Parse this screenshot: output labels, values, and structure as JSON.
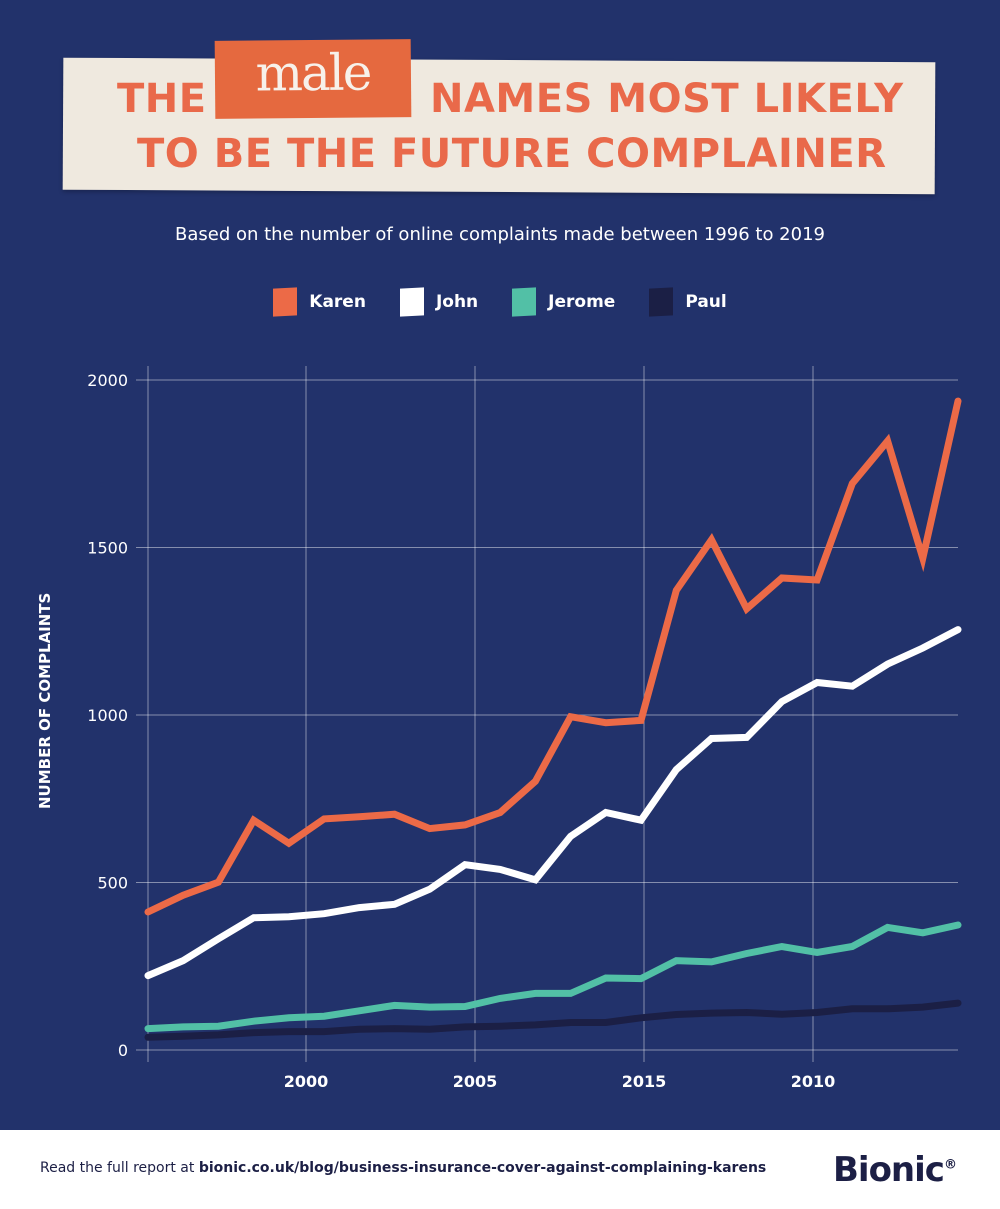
{
  "title": {
    "prefix": "THE",
    "highlight": "male",
    "line1_rest": "NAMES MOST LIKELY",
    "line2": "TO BE THE FUTURE COMPLAINER"
  },
  "subtitle": "Based on the number of online complaints made between 1996 to 2019",
  "footer": {
    "text": "Read the full report at ",
    "link": "bionic.co.uk/blog/business-insurance-cover-against-complaining-karens",
    "logo": "Bionic",
    "logo_mark": "®"
  },
  "colors": {
    "background": "#22326b",
    "karen": "#ec6a47",
    "john": "#ffffff",
    "jerome": "#52c0a6",
    "paul": "#1b1f45"
  },
  "chart_data": {
    "type": "line",
    "ylabel": "NUMBER OF COMPLAINTS",
    "xlabel": "",
    "ylim": [
      0,
      2000
    ],
    "yticks": [
      "0",
      "500",
      "1000",
      "1500",
      "2000"
    ],
    "xticks": [
      "2000",
      "2005",
      "2015",
      "2010"
    ],
    "grid": true,
    "legend": "top-center",
    "x": [
      1996,
      1997,
      1998,
      1999,
      2000,
      2001,
      2002,
      2003,
      2004,
      2005,
      2006,
      2007,
      2008,
      2009,
      2010,
      2011,
      2012,
      2013,
      2014,
      2015,
      2016,
      2017,
      2018,
      2019
    ],
    "series": [
      {
        "name": "Karen",
        "color": "#ec6a47",
        "values": [
          412,
          462,
          501,
          686,
          617,
          690,
          696,
          704,
          661,
          672,
          709,
          802,
          995,
          977,
          984,
          1372,
          1523,
          1317,
          1409,
          1403,
          1691,
          1818,
          1468,
          1937
        ]
      },
      {
        "name": "John",
        "color": "#ffffff",
        "values": [
          222,
          267,
          332,
          395,
          398,
          407,
          425,
          435,
          480,
          553,
          539,
          508,
          638,
          709,
          686,
          837,
          930,
          933,
          1040,
          1097,
          1086,
          1152,
          1200,
          1255
        ]
      },
      {
        "name": "Jerome",
        "color": "#52c0a6",
        "values": [
          64,
          69,
          71,
          86,
          96,
          101,
          117,
          133,
          128,
          130,
          154,
          169,
          169,
          215,
          213,
          267,
          263,
          288,
          309,
          291,
          309,
          366,
          350,
          373
        ]
      },
      {
        "name": "Paul",
        "color": "#1b1f45",
        "values": [
          38,
          41,
          45,
          52,
          55,
          55,
          62,
          64,
          62,
          69,
          71,
          75,
          82,
          82,
          96,
          106,
          110,
          112,
          107,
          112,
          123,
          123,
          128,
          140
        ]
      }
    ]
  }
}
